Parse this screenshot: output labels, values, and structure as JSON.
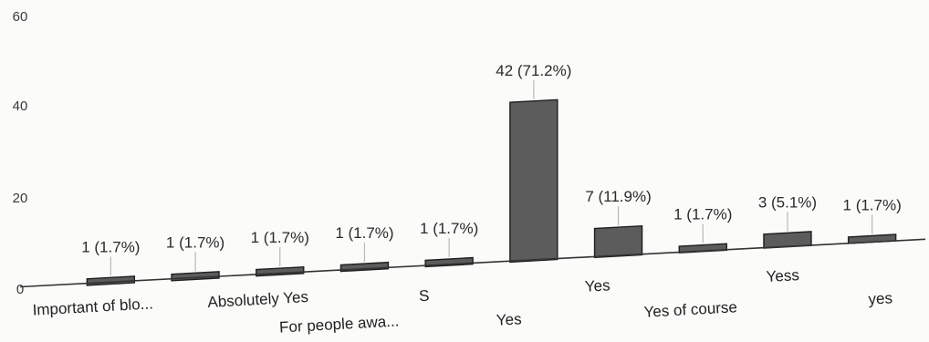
{
  "chart_data": {
    "type": "bar",
    "categories": [
      "Important of blo...",
      "For people awa...",
      "Absolutely Yes",
      "",
      "S",
      "Yes",
      "Yes",
      "Yes of course",
      "Yess",
      "yes"
    ],
    "values": [
      1,
      1,
      1,
      1,
      1,
      42,
      7,
      1,
      3,
      1
    ],
    "data_labels": [
      "1 (1.7%)",
      "1 (1.7%)",
      "1 (1.7%)",
      "1 (1.7%)",
      "1 (1.7%)",
      "42 (71.2%)",
      "7 (11.9%)",
      "1 (1.7%)",
      "3 (5.1%)",
      "1 (1.7%)"
    ],
    "yticks": [
      "0",
      "20",
      "40",
      "60"
    ],
    "ylim": [
      0,
      60
    ],
    "bar_color": "#5c5c5c"
  }
}
